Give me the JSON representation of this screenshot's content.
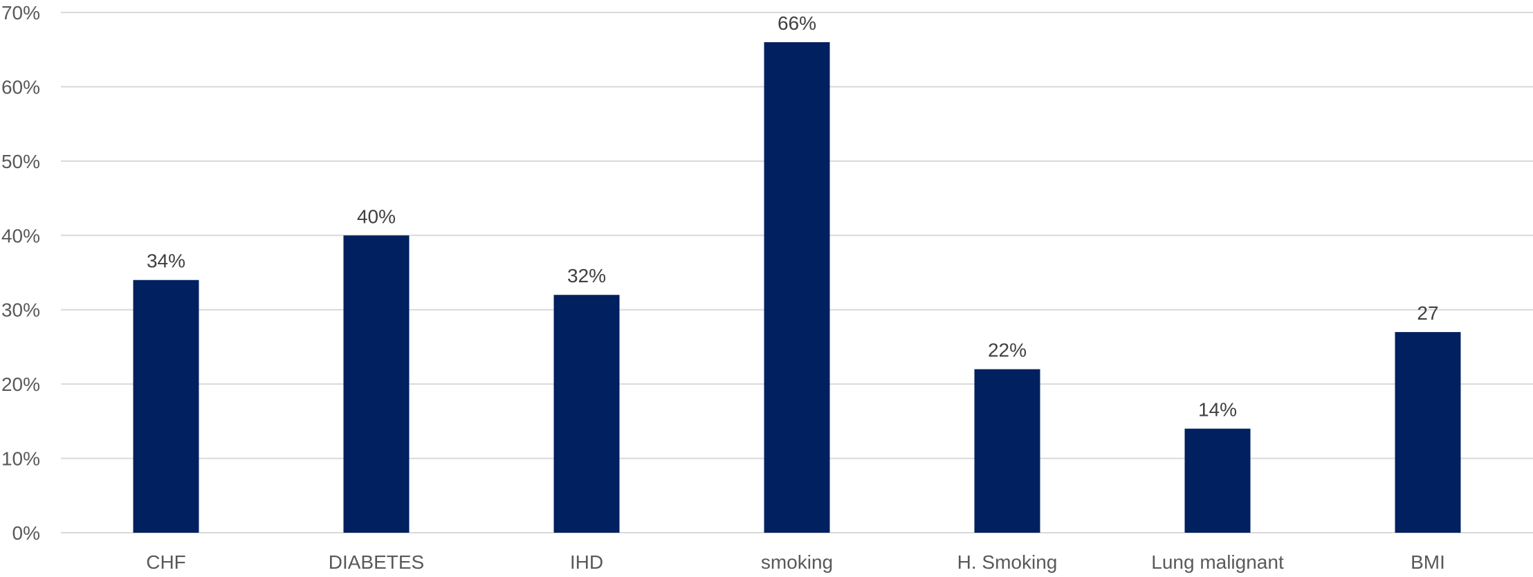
{
  "chart_data": {
    "type": "bar",
    "title": "",
    "xlabel": "",
    "ylabel": "",
    "categories": [
      "CHF",
      "DIABETES",
      "IHD",
      "smoking",
      "H. Smoking",
      "Lung malignant",
      "BMI"
    ],
    "values": [
      34,
      40,
      32,
      66,
      22,
      14,
      27
    ],
    "data_labels": [
      "34%",
      "40%",
      "32%",
      "66%",
      "22%",
      "14%",
      "27"
    ],
    "ylim": [
      0,
      70
    ],
    "yticks": [
      0,
      10,
      20,
      30,
      40,
      50,
      60,
      70
    ],
    "ytick_labels": [
      "0%",
      "10%",
      "20%",
      "30%",
      "40%",
      "50%",
      "60%",
      "70%"
    ],
    "grid": true,
    "legend": "none",
    "bar_color": "#002060"
  }
}
